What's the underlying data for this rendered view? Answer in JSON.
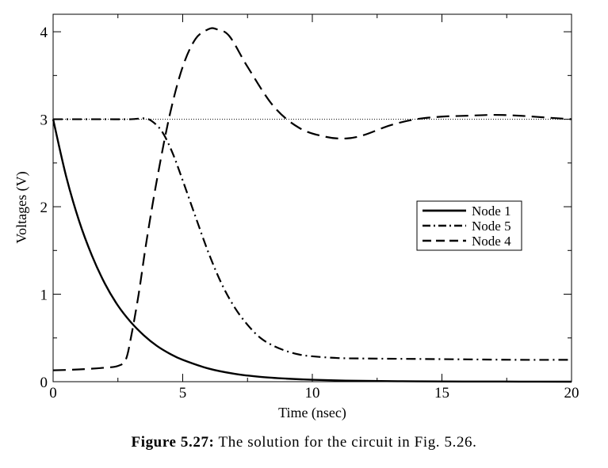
{
  "chart_data": {
    "type": "line",
    "title": "",
    "xlabel": "Time (nsec)",
    "ylabel": "Voltages (V)",
    "xlim": [
      0,
      20
    ],
    "ylim": [
      0,
      4.2
    ],
    "xticks": [
      0,
      5,
      10,
      15,
      20
    ],
    "yticks": [
      0,
      1,
      2,
      3,
      4
    ],
    "grid": false,
    "legend_position": "right-middle",
    "reference_lines": [
      {
        "y": 3,
        "style": "dotted"
      }
    ],
    "series": [
      {
        "name": "Node 1",
        "style": "solid",
        "x": [
          0,
          0.5,
          1,
          1.5,
          2,
          2.5,
          3,
          3.5,
          4,
          4.5,
          5,
          6,
          7,
          8,
          9,
          10,
          11,
          12,
          14,
          16,
          18,
          20
        ],
        "y": [
          3.0,
          2.35,
          1.84,
          1.44,
          1.12,
          0.87,
          0.68,
          0.53,
          0.41,
          0.32,
          0.25,
          0.15,
          0.09,
          0.055,
          0.035,
          0.022,
          0.014,
          0.009,
          0.004,
          0.002,
          0.001,
          0.0
        ]
      },
      {
        "name": "Node 5",
        "style": "dash-dot",
        "x": [
          0,
          1,
          2,
          3,
          3.5,
          3.8,
          4.2,
          4.6,
          5.0,
          5.5,
          6,
          6.5,
          7,
          7.5,
          8,
          8.5,
          9,
          9.5,
          10,
          11,
          12,
          14,
          16,
          18,
          20
        ],
        "y": [
          3.0,
          3.0,
          3.0,
          3.0,
          3.01,
          2.98,
          2.86,
          2.62,
          2.3,
          1.88,
          1.47,
          1.12,
          0.85,
          0.65,
          0.5,
          0.41,
          0.35,
          0.31,
          0.29,
          0.27,
          0.265,
          0.26,
          0.255,
          0.25,
          0.25
        ]
      },
      {
        "name": "Node 4",
        "style": "dashed",
        "x": [
          0,
          1,
          2,
          2.5,
          2.8,
          3.0,
          3.3,
          3.6,
          4.0,
          4.5,
          5.0,
          5.5,
          6.0,
          6.3,
          6.8,
          7.5,
          8.5,
          9.5,
          10.5,
          11.3,
          12,
          13,
          14,
          15,
          16,
          17,
          18,
          19,
          20
        ],
        "y": [
          0.13,
          0.14,
          0.16,
          0.18,
          0.25,
          0.5,
          1.0,
          1.6,
          2.3,
          3.05,
          3.6,
          3.92,
          4.03,
          4.03,
          3.95,
          3.6,
          3.15,
          2.9,
          2.8,
          2.78,
          2.82,
          2.93,
          3.0,
          3.03,
          3.04,
          3.05,
          3.04,
          3.02,
          3.0
        ]
      }
    ]
  },
  "caption": {
    "label": "Figure 5.27:",
    "text": "The solution for the circuit in Fig. 5.26."
  }
}
